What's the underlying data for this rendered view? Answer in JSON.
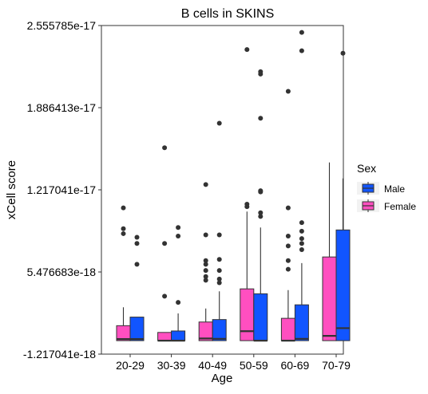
{
  "chart_data": {
    "type": "box",
    "title": "B cells in SKINS",
    "xlabel": "Age",
    "ylabel": "xCell score",
    "ylim": [
      -1.217041e-18,
      2.555785e-17
    ],
    "yticks": [
      "-1.217041e-18",
      "5.476683e-18",
      "1.217041e-17",
      "1.886413e-17",
      "2.555785e-17"
    ],
    "ytick_values": [
      -1.217041e-18,
      5.476683e-18,
      1.217041e-17,
      1.886413e-17,
      2.555785e-17
    ],
    "categories": [
      "20-29",
      "30-39",
      "40-49",
      "50-59",
      "60-69",
      "70-79"
    ],
    "legend": {
      "title": "Sex",
      "position": "right",
      "entries": [
        "Male",
        "Female"
      ]
    },
    "colors": {
      "Male": "#1155ff",
      "Female": "#ff4fc0"
    },
    "grid": false,
    "series": [
      {
        "name": "Female",
        "boxes": [
          {
            "category": "20-29",
            "q1": -1.2e-19,
            "median": 1e-20,
            "q3": 1.1e-18,
            "whisker_low": -1.2e-19,
            "whisker_high": 2.6e-18,
            "outliers": [
              1.07e-17,
              9e-18,
              8.6e-18
            ]
          },
          {
            "category": "30-39",
            "q1": -1.2e-19,
            "median": -1.2e-19,
            "q3": 5.5e-19,
            "whisker_low": -1.2e-19,
            "whisker_high": 5.5e-19,
            "outliers": [
              1.56e-17,
              3.5e-18,
              7.8e-18
            ]
          },
          {
            "category": "40-49",
            "q1": -1.2e-19,
            "median": 6e-20,
            "q3": 1.4e-18,
            "whisker_low": -1.2e-19,
            "whisker_high": 2.5e-18,
            "outliers": [
              1.26e-17,
              8.5e-18,
              6.4e-18,
              6.1e-18,
              5.6e-18,
              5.1e-18,
              4.8e-18
            ]
          },
          {
            "category": "50-59",
            "q1": -1.2e-19,
            "median": 6.5e-19,
            "q3": 4.1e-18,
            "whisker_low": -1.2e-19,
            "whisker_high": 1.04e-17,
            "outliers": [
              2.36e-17,
              1.1e-17,
              1.08e-17
            ]
          },
          {
            "category": "60-69",
            "q1": -1.2e-19,
            "median": -1.2e-19,
            "q3": 1.7e-18,
            "whisker_low": -1.2e-19,
            "whisker_high": 4e-18,
            "outliers": [
              2.02e-17,
              1.07e-17,
              8.4e-18,
              7.6e-18,
              6.4e-18,
              5.7e-18
            ]
          },
          {
            "category": "70-79",
            "q1": -1.2e-19,
            "median": 2.7e-19,
            "q3": 6.7e-18,
            "whisker_low": -1.2e-19,
            "whisker_high": 1.44e-17,
            "outliers": []
          }
        ]
      },
      {
        "name": "Male",
        "boxes": [
          {
            "category": "20-29",
            "q1": -1.2e-19,
            "median": 1e-20,
            "q3": 1.8e-18,
            "whisker_low": -1.2e-19,
            "whisker_high": 1.8e-18,
            "outliers": [
              8.3e-18,
              7.8e-18,
              6.1e-18
            ]
          },
          {
            "category": "30-39",
            "q1": -1.2e-19,
            "median": -1.2e-19,
            "q3": 6.7e-19,
            "whisker_low": -1.2e-19,
            "whisker_high": 2.1e-18,
            "outliers": [
              9.1e-18,
              8.4e-18,
              3e-18
            ]
          },
          {
            "category": "40-49",
            "q1": -1.2e-19,
            "median": 3e-20,
            "q3": 1.6e-18,
            "whisker_low": -1.2e-19,
            "whisker_high": 3.9e-18,
            "outliers": [
              1.76e-17,
              8.5e-18,
              6.5e-18,
              5.6e-18,
              4.9e-18,
              4.6e-18
            ]
          },
          {
            "category": "50-59",
            "q1": -1.2e-19,
            "median": -1.2e-19,
            "q3": 3.7e-18,
            "whisker_low": -1.2e-19,
            "whisker_high": 9.1e-18,
            "outliers": [
              2.18e-17,
              2.16e-17,
              1.8e-17,
              1.21e-17,
              1.2e-17,
              1.03e-17,
              1e-17
            ]
          },
          {
            "category": "60-69",
            "q1": -1.2e-19,
            "median": 3e-20,
            "q3": 2.8e-18,
            "whisker_low": -1.2e-19,
            "whisker_high": 6.2e-18,
            "outliers": [
              2.5e-17,
              2.35e-17,
              9.5e-18,
              8.8e-18,
              8.2e-18,
              7.8e-18,
              7.3e-18
            ]
          },
          {
            "category": "70-79",
            "q1": -1.2e-19,
            "median": 9e-19,
            "q3": 8.9e-18,
            "whisker_low": -1.2e-19,
            "whisker_high": 1.31e-17,
            "outliers": [
              2.33e-17
            ]
          }
        ]
      }
    ]
  }
}
